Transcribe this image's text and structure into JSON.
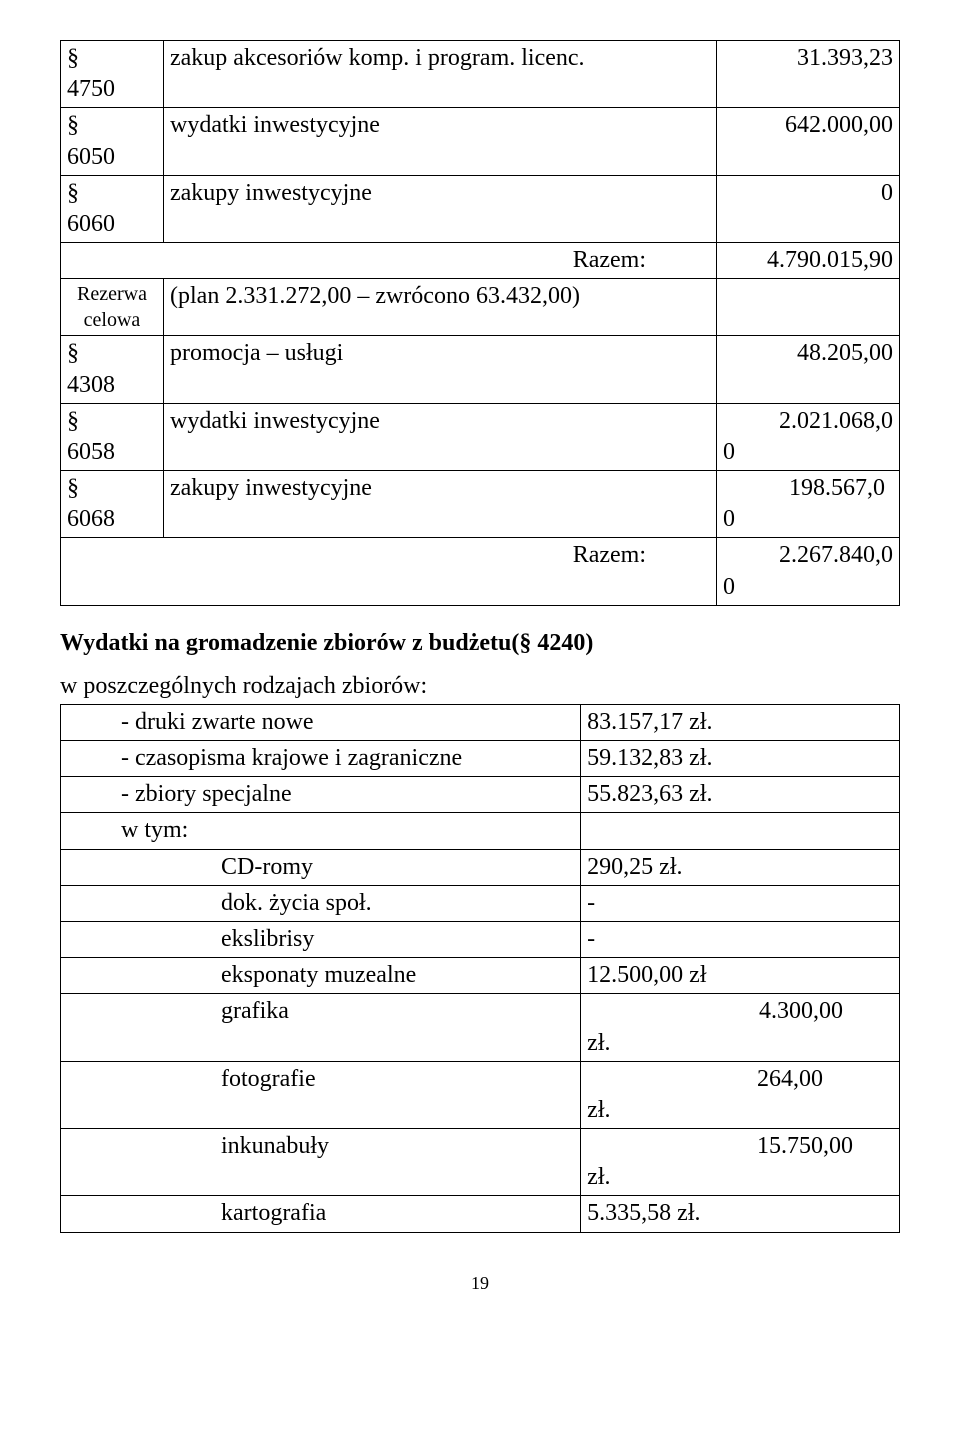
{
  "table1": {
    "rows": [
      {
        "code": "§\n4750",
        "desc": "zakup akcesoriów komp. i program. licenc.",
        "val": "31.393,23"
      },
      {
        "code": "§\n6050",
        "desc": "wydatki inwestycyjne",
        "val": "642.000,00"
      },
      {
        "code": "§\n6060",
        "desc": "zakupy inwestycyjne",
        "val": "0"
      }
    ],
    "razem1_label": "Razem:",
    "razem1_val": "4.790.015,90",
    "rezerwa_label": "Rezerwa celowa",
    "rezerwa_plan": "(plan 2.331.272,00 – zwrócono 63.432,00)",
    "rows2": [
      {
        "code": "§\n4308",
        "desc": "promocja – usługi",
        "val": "48.205,00"
      },
      {
        "code": "§\n6058",
        "desc": "wydatki inwestycyjne",
        "val_top": "2.021.068,0",
        "val_bot": "0"
      },
      {
        "code": "§\n6068",
        "desc": "zakupy inwestycyjne",
        "val_top": "198.567,0",
        "val_bot": "0"
      }
    ],
    "razem2_label": "Razem:",
    "razem2_val_top": "2.267.840,0",
    "razem2_val_bot": "0"
  },
  "heading": "Wydatki na gromadzenie zbiorów z budżetu(§ 4240)",
  "subheading": "w poszczególnych rodzajach zbiorów:",
  "table2": {
    "rows": [
      {
        "label": "- druki zwarte nowe",
        "value": "83.157,17 zł.",
        "indent": 1
      },
      {
        "label": "- czasopisma  krajowe i  zagraniczne",
        "value": "59.132,83 zł.",
        "indent": 1
      },
      {
        "label": "- zbiory specjalne",
        "value": "55.823,63  zł.",
        "indent": 1
      },
      {
        "label": "w tym:",
        "value": "",
        "indent": 1
      },
      {
        "label": "CD-romy",
        "value": "290,25 zł.",
        "indent": 2
      },
      {
        "label": "dok. życia społ.",
        "value_right": "-",
        "indent": 2
      },
      {
        "label": "ekslibrisy",
        "value_right": "-",
        "indent": 2
      },
      {
        "label": "eksponaty muzealne",
        "value": "12.500,00 zł",
        "indent": 2
      },
      {
        "label": "grafika",
        "value_split_num": "4.300,00",
        "value_split_unit": "zł.",
        "indent": 2
      },
      {
        "label": "fotografie",
        "value_split_num": "264,00",
        "value_split_unit": "zł.",
        "indent": 2,
        "unit_newline": true
      },
      {
        "label": "inkunabuły",
        "value_split_num": "15.750,00",
        "value_split_unit": "zł.",
        "indent": 2
      },
      {
        "label": "kartografia",
        "value": "5.335,58 zł.",
        "indent": 2
      }
    ]
  },
  "page_number": "19"
}
